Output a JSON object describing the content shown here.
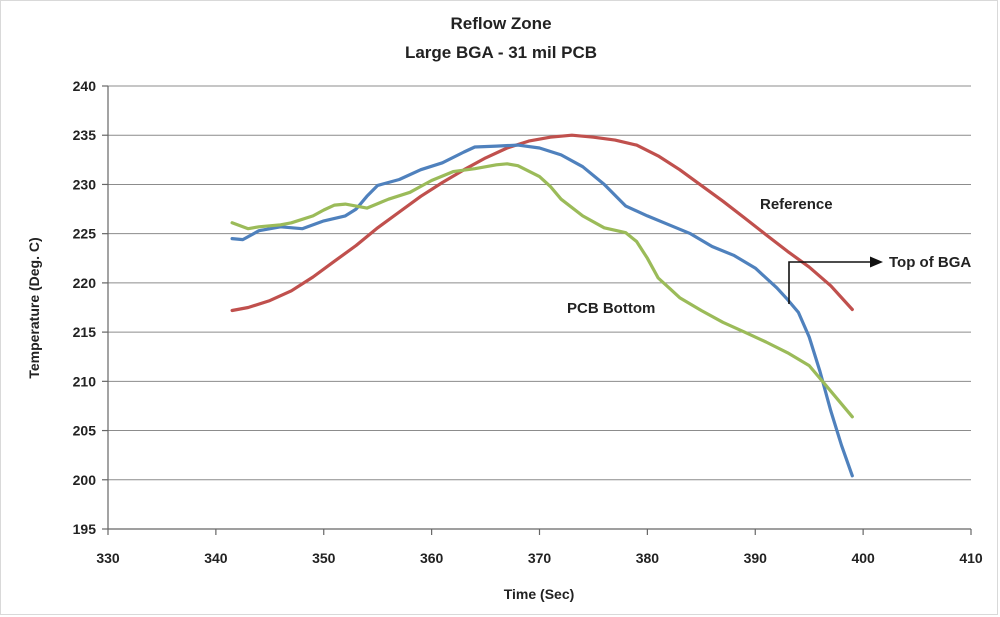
{
  "chart_data": {
    "type": "line",
    "title": "Reflow Zone",
    "subtitle": "Large BGA - 31 mil PCB",
    "xlabel": "Time (Sec)",
    "ylabel": "Temperature (Deg. C)",
    "xlim": [
      330,
      410
    ],
    "ylim": [
      195,
      240
    ],
    "x_ticks": [
      330,
      340,
      350,
      360,
      370,
      380,
      390,
      400,
      410
    ],
    "y_ticks": [
      195,
      200,
      205,
      210,
      215,
      220,
      225,
      230,
      235,
      240
    ],
    "grid": "horizontal",
    "series": [
      {
        "name": "Reference",
        "color": "#c0504d",
        "x": [
          341.5,
          343,
          345,
          347,
          349,
          351,
          353,
          355,
          357,
          359,
          361,
          363,
          365,
          367,
          369,
          371,
          373,
          375,
          377,
          379,
          381,
          383,
          385,
          387,
          389,
          391,
          393,
          395,
          397,
          399
        ],
        "y": [
          217.2,
          217.5,
          218.2,
          219.2,
          220.6,
          222.2,
          223.8,
          225.6,
          227.2,
          228.8,
          230.2,
          231.5,
          232.7,
          233.7,
          234.4,
          234.8,
          235.0,
          234.8,
          234.5,
          234.0,
          232.9,
          231.5,
          229.9,
          228.3,
          226.6,
          224.9,
          223.2,
          221.6,
          219.7,
          217.3
        ]
      },
      {
        "name": "Top of BGA",
        "color": "#4f81bd",
        "x": [
          341.5,
          342.5,
          344,
          346,
          348,
          350,
          352,
          353,
          354,
          355,
          357,
          359,
          361,
          363,
          364,
          366,
          368,
          370,
          372,
          374,
          376,
          378,
          380,
          382,
          384,
          386,
          388,
          390,
          392,
          393,
          394,
          395,
          396,
          397,
          398,
          399
        ],
        "y": [
          224.5,
          224.4,
          225.3,
          225.7,
          225.5,
          226.3,
          226.8,
          227.5,
          228.8,
          229.9,
          230.5,
          231.5,
          232.2,
          233.3,
          233.8,
          233.9,
          234.0,
          233.7,
          233.0,
          231.8,
          230.0,
          227.8,
          226.8,
          225.9,
          225.0,
          223.7,
          222.8,
          221.5,
          219.5,
          218.3,
          217.0,
          214.5,
          211.0,
          207.0,
          203.5,
          200.4
        ]
      },
      {
        "name": "PCB Bottom",
        "color": "#9bbb59",
        "x": [
          341.5,
          343,
          344,
          345,
          346,
          347,
          349,
          350,
          351,
          352,
          353,
          354,
          356,
          358,
          359,
          360,
          362,
          364,
          366,
          367,
          368,
          370,
          371,
          372,
          374,
          376,
          378,
          379,
          380,
          381,
          382,
          383,
          385,
          387,
          389,
          391,
          393,
          395,
          397,
          399
        ],
        "y": [
          226.1,
          225.5,
          225.7,
          225.8,
          225.9,
          226.1,
          226.8,
          227.4,
          227.9,
          228.0,
          227.8,
          227.6,
          228.5,
          229.2,
          229.8,
          230.4,
          231.3,
          231.6,
          232.0,
          232.1,
          231.9,
          230.8,
          229.8,
          228.5,
          226.8,
          225.6,
          225.1,
          224.2,
          222.5,
          220.5,
          219.5,
          218.5,
          217.2,
          216.0,
          215.0,
          214.0,
          212.9,
          211.6,
          209.0,
          206.4
        ]
      }
    ],
    "annotations": {
      "reference_label": "Reference",
      "pcb_bottom_label": "PCB Bottom",
      "top_of_bga_label": "Top of BGA"
    }
  }
}
